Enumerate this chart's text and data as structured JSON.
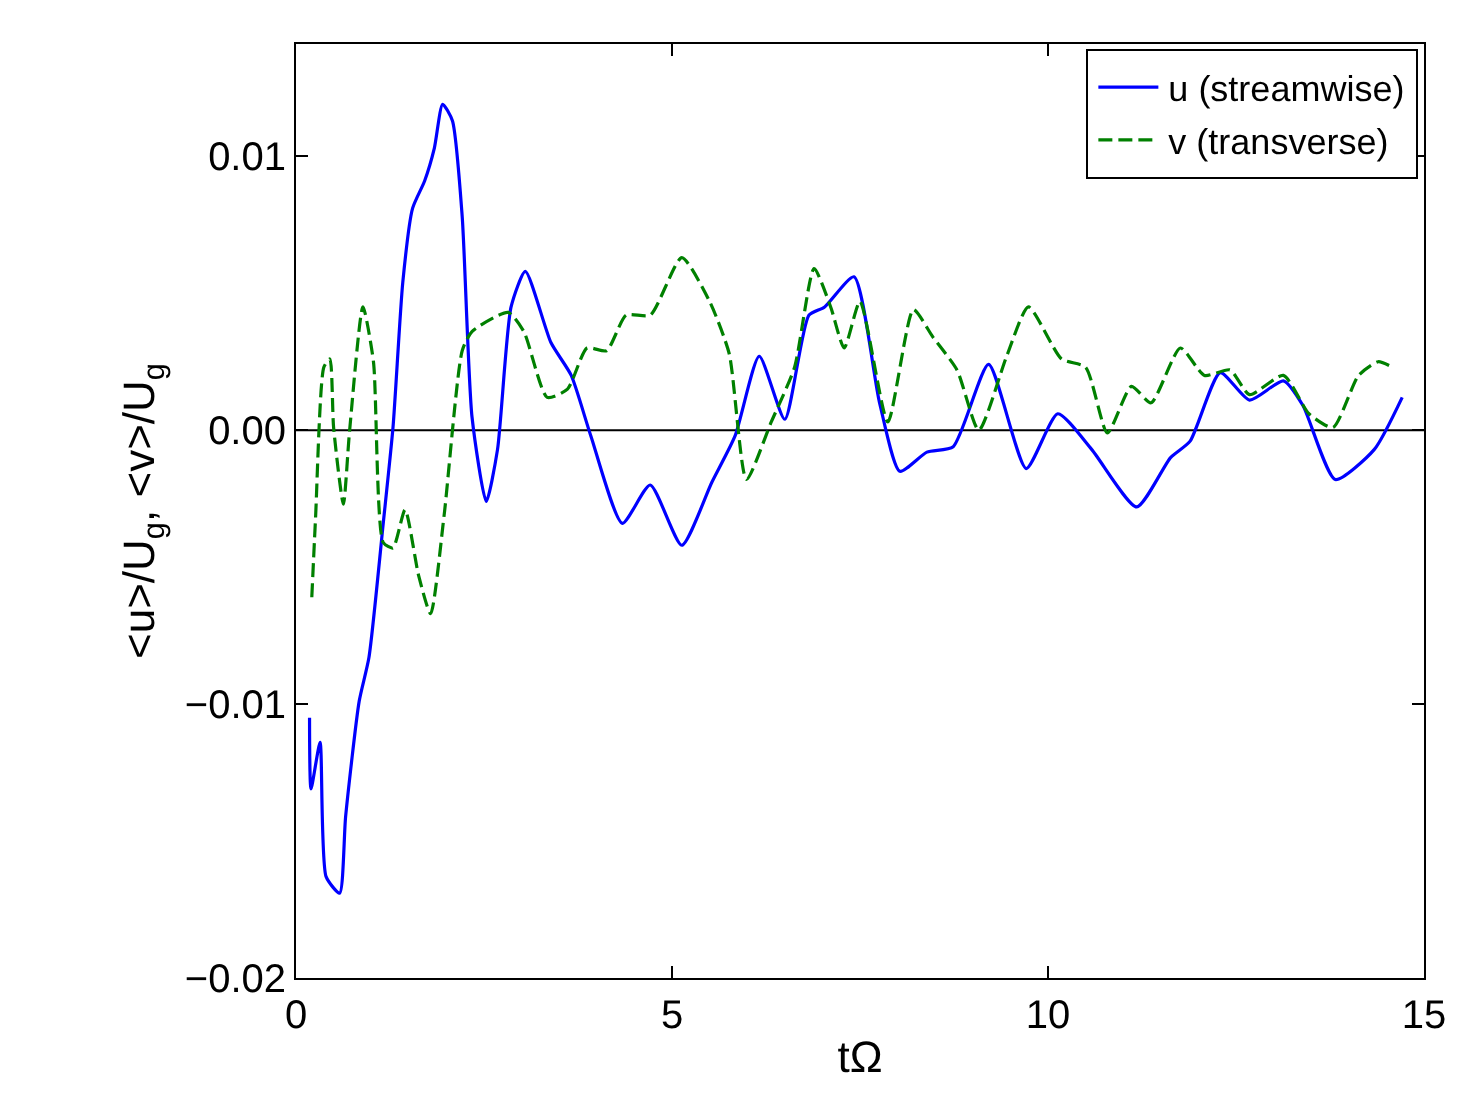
{
  "chart_data": {
    "type": "line",
    "xlabel": "tΩ",
    "ylabel": "<u>/U$_{g}$, <v>/U$_{g}$",
    "xlim": [
      0,
      15
    ],
    "xticks": [
      0,
      5,
      10,
      15
    ],
    "ylim": [
      -0.02,
      0.0141
    ],
    "yticks": [
      {
        "value": -0.02,
        "label": "−0.02"
      },
      {
        "value": -0.01,
        "label": "−0.01"
      },
      {
        "value": 0,
        "label": "0.00"
      },
      {
        "value": 0.01,
        "label": "0.01"
      }
    ],
    "grid": false,
    "legend": "top right",
    "ref_lines": [
      {
        "axis": "y",
        "value": 0,
        "color": "#000000",
        "line_style": "solid"
      }
    ],
    "series": [
      {
        "name": "u (streamwise)",
        "color": "#0000ff",
        "line_style": "solid",
        "x": [
          0.18,
          0.2,
          0.32,
          0.4,
          0.58,
          0.66,
          0.84,
          0.97,
          1.16,
          1.29,
          1.42,
          1.55,
          1.71,
          1.84,
          1.95,
          2.08,
          2.21,
          2.34,
          2.53,
          2.68,
          2.86,
          3.05,
          3.39,
          3.66,
          3.92,
          4.34,
          4.71,
          5.13,
          5.53,
          5.84,
          6.16,
          6.5,
          6.82,
          7.03,
          7.42,
          7.76,
          8.03,
          8.39,
          8.74,
          9.21,
          9.71,
          10.13,
          10.58,
          11.18,
          11.63,
          11.89,
          12.29,
          12.68,
          13.13,
          13.39,
          13.82,
          14.34,
          14.71
        ],
        "values": [
          -0.0105,
          -0.0131,
          -0.0114,
          -0.0163,
          -0.0169,
          -0.0141,
          -0.0099,
          -0.0083,
          -0.0034,
          0.0001,
          0.0054,
          0.0081,
          0.0091,
          0.0103,
          0.0119,
          0.0113,
          0.0078,
          0.0005,
          -0.0026,
          -0.0007,
          0.0045,
          0.0058,
          0.0032,
          0.002,
          -0.0002,
          -0.0034,
          -0.002,
          -0.0042,
          -0.0019,
          -0.0002,
          0.0027,
          0.0004,
          0.0042,
          0.0045,
          0.0056,
          0.001,
          -0.0015,
          -0.0008,
          -0.0006,
          0.0024,
          -0.0014,
          0.0006,
          -0.0007,
          -0.0028,
          -0.001,
          -0.0004,
          0.0021,
          0.0011,
          0.0018,
          0.0009,
          -0.0018,
          -0.0007,
          0.0012
        ]
      },
      {
        "name": "v (transverse)",
        "color": "#008000",
        "line_style": "dashed",
        "x": [
          0.21,
          0.26,
          0.37,
          0.45,
          0.5,
          0.63,
          0.71,
          0.89,
          1.03,
          1.16,
          1.29,
          1.45,
          1.63,
          1.79,
          1.97,
          2.21,
          2.34,
          2.82,
          3.03,
          3.34,
          3.61,
          3.87,
          4.13,
          4.39,
          4.71,
          5.13,
          5.5,
          5.76,
          5.99,
          6.32,
          6.63,
          6.89,
          7.11,
          7.29,
          7.5,
          7.87,
          8.21,
          8.47,
          8.79,
          9.08,
          9.45,
          9.74,
          10.18,
          10.5,
          10.79,
          11.11,
          11.37,
          11.76,
          12.08,
          12.42,
          12.68,
          13.13,
          13.47,
          13.79,
          14.13,
          14.39,
          14.58
        ],
        "values": [
          -0.0061,
          -0.0032,
          0.0023,
          0.0026,
          0.0001,
          -0.0027,
          -0.0001,
          0.0045,
          0.0025,
          -0.0041,
          -0.0043,
          -0.0029,
          -0.0053,
          -0.0067,
          -0.0031,
          0.0029,
          0.0036,
          0.0043,
          0.0036,
          0.0012,
          0.0015,
          0.003,
          0.0029,
          0.0042,
          0.0042,
          0.0063,
          0.0047,
          0.0028,
          -0.0018,
          0.0003,
          0.0023,
          0.0059,
          0.0045,
          0.003,
          0.0047,
          0.0003,
          0.0044,
          0.0034,
          0.0022,
          0.0,
          0.0027,
          0.0045,
          0.0026,
          0.0023,
          -0.0001,
          0.0016,
          0.001,
          0.003,
          0.002,
          0.0022,
          0.0013,
          0.002,
          0.0006,
          0.0001,
          0.002,
          0.0025,
          0.0023
        ]
      }
    ]
  }
}
